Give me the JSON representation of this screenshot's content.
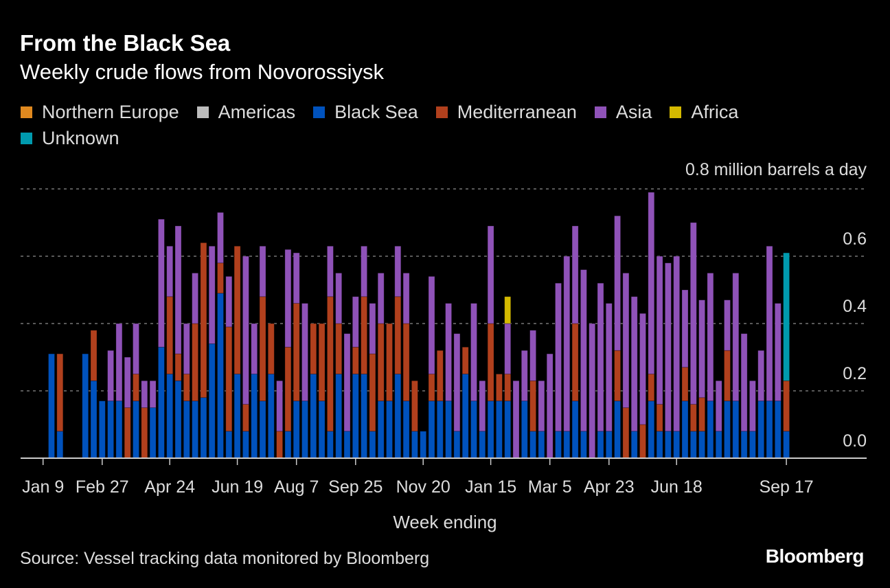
{
  "chart_data": {
    "type": "bar",
    "stacked": true,
    "title": "From the Black Sea",
    "subtitle": "Weekly crude flows from Novorossiysk",
    "xlabel": "Week ending",
    "ylabel": "million barrels a day",
    "ylim": [
      0,
      0.8
    ],
    "yticks": [
      "0.0",
      "0.2",
      "0.4",
      "0.6",
      "0.8"
    ],
    "ytick_values": [
      0,
      0.2,
      0.4,
      0.6,
      0.8
    ],
    "top_unit_label": "million barrels a day",
    "grid": true,
    "legend_position": "top-left",
    "xtick_labels": [
      {
        "index": 0,
        "label": "Jan 9"
      },
      {
        "index": 7,
        "label": "Feb 27"
      },
      {
        "index": 15,
        "label": "Apr 24"
      },
      {
        "index": 23,
        "label": "Jun 19"
      },
      {
        "index": 30,
        "label": "Aug 7"
      },
      {
        "index": 37,
        "label": "Sep 25"
      },
      {
        "index": 45,
        "label": "Nov 20"
      },
      {
        "index": 53,
        "label": "Jan 15"
      },
      {
        "index": 60,
        "label": "Mar 5"
      },
      {
        "index": 67,
        "label": "Apr 23"
      },
      {
        "index": 75,
        "label": "Jun 18"
      },
      {
        "index": 88,
        "label": "Sep 17"
      }
    ],
    "weeks": 89,
    "series": [
      {
        "name": "Northern Europe",
        "color": "#e0891f",
        "values": [
          0,
          0,
          0,
          0,
          0,
          0,
          0,
          0,
          0,
          0,
          0,
          0,
          0,
          0,
          0,
          0,
          0,
          0,
          0,
          0,
          0,
          0,
          0,
          0,
          0,
          0,
          0,
          0,
          0,
          0,
          0,
          0,
          0,
          0,
          0,
          0,
          0,
          0,
          0,
          0,
          0,
          0,
          0,
          0,
          0,
          0,
          0,
          0,
          0,
          0,
          0,
          0,
          0,
          0,
          0,
          0,
          0,
          0,
          0,
          0,
          0,
          0,
          0,
          0,
          0,
          0,
          0,
          0,
          0,
          0,
          0,
          0,
          0,
          0,
          0,
          0,
          0,
          0,
          0,
          0,
          0,
          0,
          0,
          0,
          0,
          0,
          0,
          0,
          0
        ]
      },
      {
        "name": "Americas",
        "color": "#bdbdbd",
        "values": [
          0,
          0,
          0,
          0,
          0,
          0,
          0,
          0,
          0,
          0,
          0,
          0,
          0,
          0,
          0,
          0,
          0,
          0,
          0,
          0,
          0,
          0,
          0,
          0,
          0,
          0,
          0,
          0,
          0,
          0,
          0,
          0,
          0,
          0,
          0,
          0,
          0,
          0,
          0,
          0,
          0,
          0,
          0,
          0,
          0,
          0,
          0,
          0,
          0,
          0,
          0,
          0,
          0,
          0,
          0,
          0,
          0,
          0,
          0,
          0,
          0,
          0,
          0,
          0,
          0,
          0,
          0,
          0,
          0,
          0,
          0,
          0,
          0,
          0,
          0,
          0,
          0,
          0,
          0,
          0,
          0,
          0,
          0,
          0,
          0,
          0,
          0,
          0,
          0
        ]
      },
      {
        "name": "Black Sea",
        "color": "#0052bd",
        "values": [
          0,
          0.31,
          0.08,
          0,
          0,
          0.31,
          0.23,
          0.17,
          0.17,
          0.17,
          0,
          0.17,
          0,
          0.15,
          0.33,
          0.25,
          0.23,
          0.17,
          0.17,
          0.18,
          0.34,
          0.49,
          0.08,
          0.25,
          0.08,
          0.25,
          0.17,
          0.25,
          0,
          0.08,
          0.17,
          0.17,
          0.25,
          0.17,
          0.08,
          0.25,
          0.08,
          0.25,
          0.25,
          0.08,
          0.17,
          0.17,
          0.25,
          0.17,
          0.08,
          0.08,
          0.17,
          0.17,
          0.17,
          0.08,
          0.25,
          0.17,
          0.08,
          0.17,
          0.17,
          0.17,
          0,
          0.17,
          0.08,
          0.08,
          0,
          0.08,
          0.08,
          0.17,
          0.08,
          0,
          0.08,
          0.08,
          0.17,
          0,
          0.08,
          0,
          0.17,
          0.08,
          0.08,
          0.08,
          0.17,
          0.08,
          0.08,
          0.17,
          0.08,
          0.17,
          0.17,
          0.08,
          0.08,
          0.17,
          0.17,
          0.17,
          0.08
        ]
      },
      {
        "name": "Mediterranean",
        "color": "#b1401d",
        "values": [
          0,
          0,
          0.23,
          0,
          0,
          0,
          0.15,
          0,
          0,
          0,
          0.15,
          0.08,
          0.15,
          0,
          0,
          0.23,
          0.08,
          0.08,
          0.23,
          0.46,
          0,
          0.09,
          0.31,
          0.38,
          0.08,
          0,
          0.31,
          0.15,
          0.08,
          0.25,
          0.29,
          0,
          0.15,
          0.23,
          0.4,
          0.15,
          0,
          0.08,
          0.23,
          0.23,
          0.23,
          0.23,
          0.23,
          0.23,
          0.15,
          0,
          0.08,
          0.15,
          0,
          0,
          0.08,
          0,
          0,
          0.23,
          0.08,
          0.08,
          0,
          0,
          0.15,
          0,
          0,
          0,
          0,
          0.23,
          0,
          0,
          0,
          0,
          0.15,
          0.15,
          0,
          0.1,
          0.08,
          0.08,
          0,
          0,
          0.1,
          0.08,
          0.1,
          0,
          0,
          0.15,
          0,
          0,
          0,
          0,
          0,
          0,
          0.15
        ]
      },
      {
        "name": "Asia",
        "color": "#8f52b8",
        "values": [
          0,
          0,
          0,
          0,
          0,
          0,
          0,
          0,
          0.15,
          0.23,
          0.15,
          0.15,
          0.08,
          0.08,
          0.38,
          0.15,
          0.38,
          0.15,
          0.15,
          0,
          0.29,
          0.15,
          0.15,
          0,
          0.44,
          0.15,
          0.15,
          0,
          0.15,
          0.29,
          0.15,
          0.29,
          0,
          0,
          0.15,
          0.15,
          0.29,
          0.15,
          0.15,
          0.15,
          0.15,
          0,
          0.15,
          0.15,
          0,
          0,
          0.29,
          0,
          0.29,
          0.29,
          0,
          0.29,
          0.15,
          0.29,
          0,
          0.15,
          0.23,
          0.15,
          0.15,
          0.15,
          0.31,
          0.44,
          0.52,
          0.29,
          0.48,
          0.4,
          0.44,
          0.38,
          0.4,
          0.4,
          0.4,
          0.33,
          0.54,
          0.44,
          0.5,
          0.52,
          0.23,
          0.54,
          0.29,
          0.38,
          0.15,
          0.15,
          0.38,
          0.29,
          0.15,
          0.15,
          0.46,
          0.29,
          0
        ]
      },
      {
        "name": "Africa",
        "color": "#d4b900",
        "values": [
          0,
          0,
          0,
          0,
          0,
          0,
          0,
          0,
          0,
          0,
          0,
          0,
          0,
          0,
          0,
          0,
          0,
          0,
          0,
          0,
          0,
          0,
          0,
          0,
          0,
          0,
          0,
          0,
          0,
          0,
          0,
          0,
          0,
          0,
          0,
          0,
          0,
          0,
          0,
          0,
          0,
          0,
          0,
          0,
          0,
          0,
          0,
          0,
          0,
          0,
          0,
          0,
          0,
          0,
          0,
          0.08,
          0,
          0,
          0,
          0,
          0,
          0,
          0,
          0,
          0,
          0,
          0,
          0,
          0,
          0,
          0,
          0,
          0,
          0,
          0,
          0,
          0,
          0,
          0,
          0,
          0,
          0,
          0,
          0,
          0,
          0,
          0,
          0,
          0
        ]
      },
      {
        "name": "Unknown",
        "color": "#009aae",
        "values": [
          0,
          0,
          0,
          0,
          0,
          0,
          0,
          0,
          0,
          0,
          0,
          0,
          0,
          0,
          0,
          0,
          0,
          0,
          0,
          0,
          0,
          0,
          0,
          0,
          0,
          0,
          0,
          0,
          0,
          0,
          0,
          0,
          0,
          0,
          0,
          0,
          0,
          0,
          0,
          0,
          0,
          0,
          0,
          0,
          0,
          0,
          0,
          0,
          0,
          0,
          0,
          0,
          0,
          0,
          0,
          0,
          0,
          0,
          0,
          0,
          0,
          0,
          0,
          0,
          0,
          0,
          0,
          0,
          0,
          0,
          0,
          0,
          0,
          0,
          0,
          0,
          0,
          0,
          0,
          0,
          0,
          0,
          0,
          0,
          0,
          0,
          0,
          0,
          0.38
        ]
      }
    ]
  },
  "source": "Source: Vessel tracking data monitored by Bloomberg",
  "logo": "Bloomberg"
}
